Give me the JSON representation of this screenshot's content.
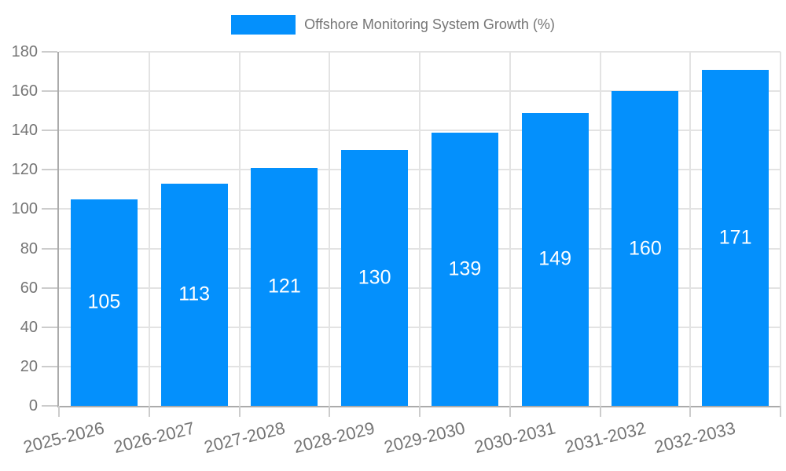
{
  "chart_data": {
    "type": "bar",
    "title": "Offshore Monitoring System Growth (%)",
    "legend_entries": [
      "Offshore Monitoring System Growth (%)"
    ],
    "legend_position": "top-center",
    "categories": [
      "2025-2026",
      "2026-2027",
      "2027-2028",
      "2028-2029",
      "2029-2030",
      "2030-2031",
      "2031-2032",
      "2032-2033"
    ],
    "values": [
      105,
      113,
      121,
      130,
      139,
      149,
      160,
      171
    ],
    "value_labels": [
      "105",
      "113",
      "121",
      "130",
      "139",
      "149",
      "160",
      "171"
    ],
    "xlabel": "",
    "ylabel": "",
    "ylim": [
      0,
      180
    ],
    "ytick_step": 20,
    "ytick_labels": [
      "0",
      "20",
      "40",
      "60",
      "80",
      "100",
      "120",
      "140",
      "160",
      "180"
    ],
    "grid": true,
    "x_label_rotation_deg": -14,
    "colors": {
      "bar": "#0490fc",
      "value_label_text": "#ffffff",
      "axis_text": "#757575",
      "legend_text": "#757575",
      "gridline": "#e3e3e3",
      "axis_line": "#ababab",
      "tick": "#cccccc",
      "background": "#ffffff"
    }
  }
}
